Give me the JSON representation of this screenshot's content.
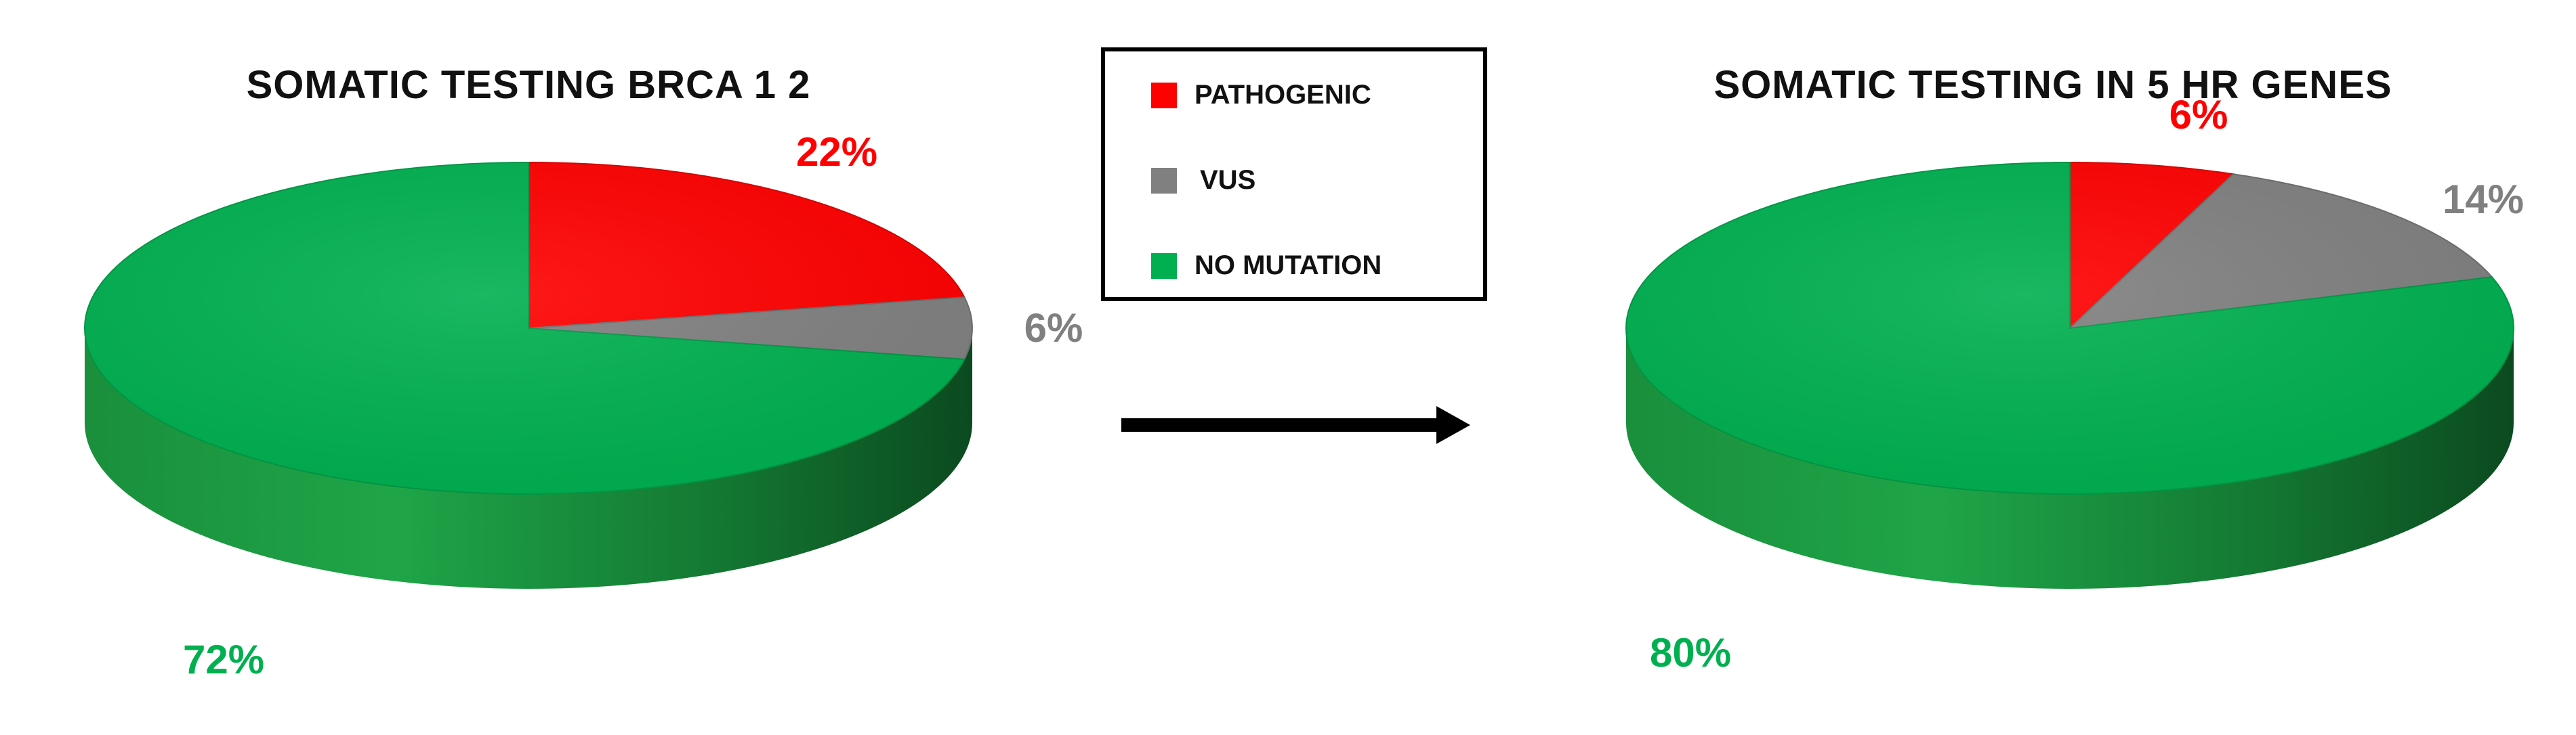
{
  "colors": {
    "PATHOGENIC": "#ff0000",
    "VUS": "#808080",
    "NO MUTATION": "#00b050"
  },
  "legend": {
    "items": [
      {
        "label": "PATHOGENIC",
        "color": "#ff0000"
      },
      {
        "label": "VUS",
        "color": "#808080"
      },
      {
        "label": "NO MUTATION",
        "color": "#00b050"
      }
    ]
  },
  "chart_data": [
    {
      "type": "pie",
      "title": "SOMATIC TESTING BRCA 1 2",
      "categories": [
        "PATHOGENIC",
        "VUS",
        "NO MUTATION"
      ],
      "values": [
        22,
        6,
        72
      ],
      "labels": [
        "22%",
        "6%",
        "72%"
      ],
      "legend": "center"
    },
    {
      "type": "pie",
      "title": "SOMATIC TESTING IN 5 HR GENES",
      "categories": [
        "PATHOGENIC",
        "VUS",
        "NO MUTATION"
      ],
      "values": [
        6,
        14,
        80
      ],
      "labels": [
        "6%",
        "14%",
        "80%"
      ],
      "legend": "center"
    }
  ]
}
